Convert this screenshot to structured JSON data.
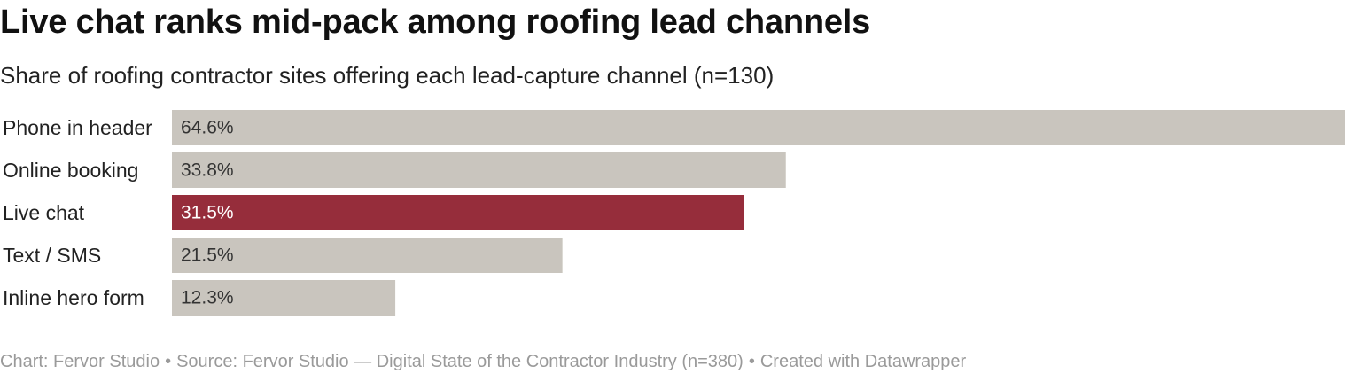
{
  "header": {
    "title": "Live chat ranks mid-pack among roofing lead channels",
    "subtitle": "Share of roofing contractor sites offering each lead-capture channel (n=130)"
  },
  "footer": {
    "chart_credit": "Chart: Fervor Studio",
    "separator": "•",
    "source": "Source: Fervor Studio — Digital State of the Contractor Industry (n=380)",
    "created_with": "Created with Datawrapper"
  },
  "colors": {
    "bar_default": "#c9c5be",
    "bar_highlight": "#962d3b",
    "label_text": "#222222",
    "value_text_default": "#333333",
    "value_text_highlight": "#ffffff"
  },
  "chart_data": {
    "type": "bar",
    "orientation": "horizontal",
    "title": "Live chat ranks mid-pack among roofing lead channels",
    "subtitle": "Share of roofing contractor sites offering each lead-capture channel (n=130)",
    "categories": [
      "Phone in header",
      "Online booking",
      "Live chat",
      "Text / SMS",
      "Inline hero form"
    ],
    "values": [
      64.6,
      33.8,
      31.5,
      21.5,
      12.3
    ],
    "value_labels": [
      "64.6%",
      "33.8%",
      "31.5%",
      "21.5%",
      "12.3%"
    ],
    "highlighted_category": "Live chat",
    "unit": "%",
    "xlim": [
      0,
      64.6
    ],
    "grid": false,
    "legend": "none"
  }
}
